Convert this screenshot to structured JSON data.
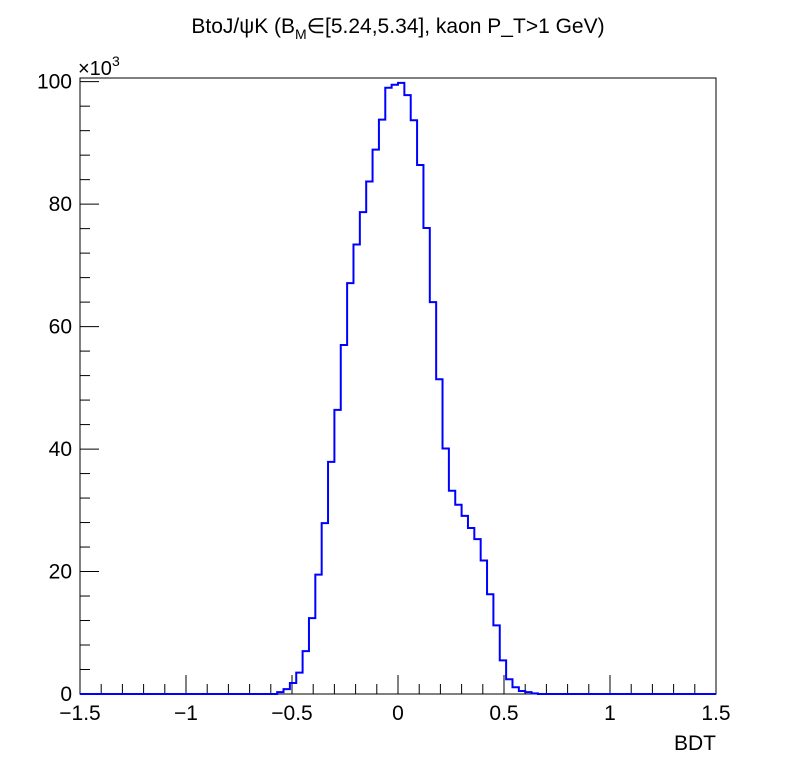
{
  "chart_data": {
    "type": "histogram-step",
    "title_parts": {
      "before": "BtoJ/ψK (B",
      "sub": "M",
      "after": "∈[5.24,5.34], kaon P_T>1 GeV)"
    },
    "xlabel": "BDT",
    "ylabel": "",
    "y_multiplier_label": "×10",
    "y_multiplier_exp": "3",
    "xlim": [
      -1.5,
      1.5
    ],
    "ylim": [
      0,
      100.6
    ],
    "x_ticks": [
      -1.5,
      -1,
      -0.5,
      0,
      0.5,
      1,
      1.5
    ],
    "x_tick_labels": [
      "−1.5",
      "−1",
      "−0.5",
      "0",
      "0.5",
      "1",
      "1.5"
    ],
    "y_ticks": [
      0,
      20,
      40,
      60,
      80,
      100
    ],
    "y_tick_labels": [
      "0",
      "20",
      "40",
      "60",
      "80",
      "100"
    ],
    "bin_width": 0.03,
    "bins_x_start": -0.6,
    "bin_values": [
      0.0,
      0.3,
      0.8,
      1.8,
      3.5,
      7.0,
      12.4,
      19.5,
      27.9,
      37.9,
      46.4,
      57.0,
      67.1,
      73.4,
      78.7,
      83.7,
      88.9,
      93.8,
      99.0,
      99.5,
      99.8,
      97.8,
      93.7,
      86.4,
      76.1,
      64.0,
      51.4,
      40.1,
      33.2,
      30.9,
      29.1,
      27.1,
      25.3,
      21.8,
      16.3,
      11.2,
      5.5,
      2.4,
      1.1,
      0.5,
      0.3,
      0.1,
      0.0
    ],
    "line_color": "#0000ff"
  }
}
